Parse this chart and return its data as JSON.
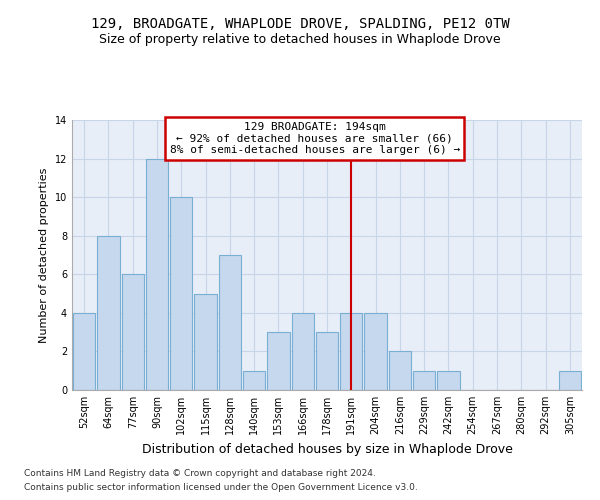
{
  "title1": "129, BROADGATE, WHAPLODE DROVE, SPALDING, PE12 0TW",
  "title2": "Size of property relative to detached houses in Whaplode Drove",
  "xlabel": "Distribution of detached houses by size in Whaplode Drove",
  "ylabel": "Number of detached properties",
  "categories": [
    "52sqm",
    "64sqm",
    "77sqm",
    "90sqm",
    "102sqm",
    "115sqm",
    "128sqm",
    "140sqm",
    "153sqm",
    "166sqm",
    "178sqm",
    "191sqm",
    "204sqm",
    "216sqm",
    "229sqm",
    "242sqm",
    "254sqm",
    "267sqm",
    "280sqm",
    "292sqm",
    "305sqm"
  ],
  "values": [
    4,
    8,
    6,
    12,
    10,
    5,
    7,
    1,
    3,
    4,
    3,
    4,
    4,
    2,
    1,
    1,
    0,
    0,
    0,
    0,
    1
  ],
  "bar_color": "#c5d8ed",
  "bar_edge_color": "#7aafd4",
  "highlight_index": 11,
  "vline_color": "#cc0000",
  "annotation_line1": "129 BROADGATE: 194sqm",
  "annotation_line2": "← 92% of detached houses are smaller (66)",
  "annotation_line3": "8% of semi-detached houses are larger (6) →",
  "annotation_box_color": "#cc0000",
  "ylim": [
    0,
    14
  ],
  "yticks": [
    0,
    2,
    4,
    6,
    8,
    10,
    12,
    14
  ],
  "grid_color": "#c8d4e8",
  "bg_color": "#e8eef8",
  "footer1": "Contains HM Land Registry data © Crown copyright and database right 2024.",
  "footer2": "Contains public sector information licensed under the Open Government Licence v3.0.",
  "title1_fontsize": 10,
  "title2_fontsize": 9,
  "xlabel_fontsize": 9,
  "ylabel_fontsize": 8,
  "tick_fontsize": 7,
  "annotation_fontsize": 8,
  "footer_fontsize": 6.5
}
